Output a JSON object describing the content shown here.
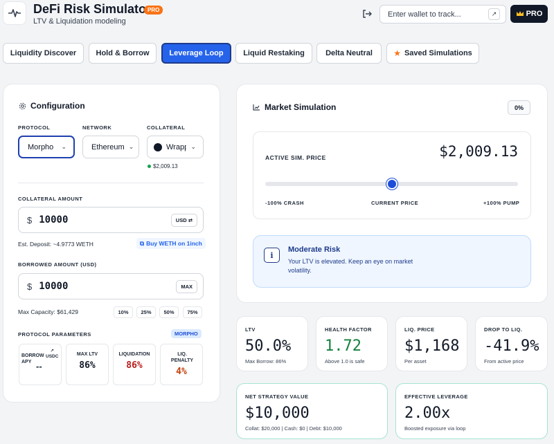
{
  "app": {
    "title": "DeFi Risk Simulator",
    "badge": "PRO",
    "subtitle": "LTV & Liquidation modeling"
  },
  "header": {
    "wallet_placeholder": "Enter wallet to track...",
    "pro_button": "PRO"
  },
  "tabs": [
    {
      "label": "Liquidity Discover"
    },
    {
      "label": "Hold & Borrow"
    },
    {
      "label": "Leverage Loop"
    },
    {
      "label": "Liquid Restaking"
    },
    {
      "label": "Delta Neutral"
    },
    {
      "label": "Saved Simulations"
    }
  ],
  "config": {
    "title": "Configuration",
    "protocol_label": "PROTOCOL",
    "protocol": "Morpho",
    "network_label": "NETWORK",
    "network": "Ethereum",
    "collateral_label": "COLLATERAL",
    "collateral": "Wrapp",
    "collateral_price": "$2,009.13",
    "collateral_amount_label": "COLLATERAL AMOUNT",
    "currency": "$",
    "collateral_amount": "10000",
    "usd_toggle": "USD",
    "est_deposit": "Est. Deposit: ~4.9773 WETH",
    "buy_link": "Buy WETH on 1inch",
    "borrowed_label": "BORROWED AMOUNT (USD)",
    "borrowed_amount": "10000",
    "max_button": "MAX",
    "max_capacity": "Max Capacity: $61,429",
    "percent_buttons": [
      "10%",
      "25%",
      "50%",
      "75%"
    ],
    "params_label": "PROTOCOL PARAMETERS",
    "params_badge": "MORPHO",
    "params": [
      {
        "title": "BORROW APY",
        "tag": "USDC",
        "value": "--"
      },
      {
        "title": "MAX LTV",
        "value": "86%"
      },
      {
        "title": "LIQUIDATION",
        "value": "86%"
      },
      {
        "title": "LIQ. PENALTY",
        "value": "4%"
      }
    ]
  },
  "simulation": {
    "title": "Market Simulation",
    "change": "0%",
    "price_label": "ACTIVE SIM. PRICE",
    "price": "$2,009.13",
    "slider_value": 0,
    "slider_labels": [
      "-100% CRASH",
      "CURRENT PRICE",
      "+100% PUMP"
    ],
    "risk_title": "Moderate Risk",
    "risk_text": "Your LTV is elevated. Keep an eye on market volatility."
  },
  "stats": {
    "ltv": {
      "title": "LTV",
      "value": "50.0%",
      "sub": "Max Borrow: 86%"
    },
    "health": {
      "title": "HEALTH FACTOR",
      "value": "1.72",
      "sub": "Above 1.0 is safe"
    },
    "liq_price": {
      "title": "LIQ. PRICE",
      "value": "$1,168",
      "sub": "Per asset"
    },
    "drop": {
      "title": "DROP TO LIQ.",
      "value": "-41.9%",
      "sub": "From active price"
    },
    "net": {
      "title": "NET STRATEGY VALUE",
      "value": "$10,000",
      "sub": "Collat: $20,000 | Cash: $0 | Debt: $10,000"
    },
    "leverage": {
      "title": "EFFECTIVE LEVERAGE",
      "value": "2.00x",
      "sub": "Boosted exposure via loop"
    }
  },
  "colors": {
    "accent": "#2563eb",
    "pro": "#f97316",
    "health": "#15803d",
    "danger": "#b91c1c",
    "teal_border": "#a7e3d3"
  }
}
